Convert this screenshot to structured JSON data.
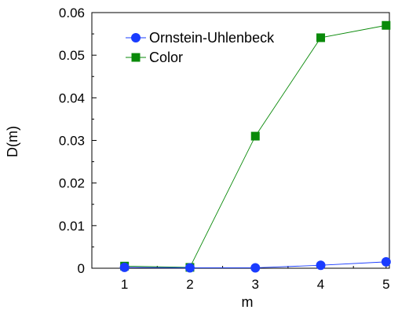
{
  "chart_data": {
    "type": "line",
    "title": "",
    "xlabel": "m",
    "ylabel": "D(m)",
    "x": [
      1,
      2,
      3,
      4,
      5
    ],
    "xlim": [
      0.5,
      5.05
    ],
    "ylim": [
      0,
      0.06
    ],
    "x_ticks": [
      1,
      2,
      3,
      4,
      5
    ],
    "y_ticks": [
      0,
      0.01,
      0.02,
      0.03,
      0.04,
      0.05,
      0.06
    ],
    "x_tick_labels": [
      "1",
      "2",
      "3",
      "4",
      "5"
    ],
    "y_tick_labels": [
      "0",
      "0.01",
      "0.02",
      "0.03",
      "0.04",
      "0.05",
      "0.06"
    ],
    "grid": false,
    "legend_position": "top-left",
    "series": [
      {
        "name": "Ornstein-Uhlenbeck",
        "values": [
          0.0002,
          0.0001,
          0.0001,
          0.0007,
          0.0015
        ],
        "color": "#1a3cff",
        "marker": "circle"
      },
      {
        "name": "Color",
        "values": [
          0.0005,
          0.0002,
          0.031,
          0.0541,
          0.057
        ],
        "color": "#0a8a0a",
        "marker": "square"
      }
    ]
  }
}
